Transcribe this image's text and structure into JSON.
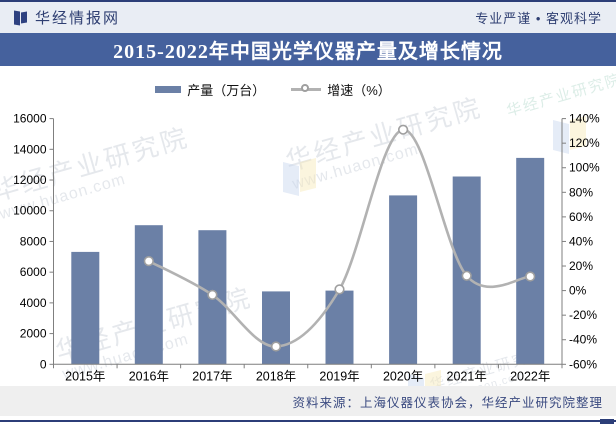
{
  "header": {
    "brand": "华经情报网",
    "slogan": "专业严谨 • 客观科学"
  },
  "title": "2015-2022年中国光学仪器产量及增长情况",
  "legend": [
    {
      "label": "产量（万台）",
      "type": "bar",
      "color": "#6b80a6"
    },
    {
      "label": "增速（%）",
      "type": "line",
      "color": "#b2b2b2"
    }
  ],
  "chart_data": {
    "type": "bar",
    "categories": [
      "2015年",
      "2016年",
      "2017年",
      "2018年",
      "2019年",
      "2020年",
      "2021年",
      "2022年"
    ],
    "series": [
      {
        "name": "产量（万台）",
        "type": "bar",
        "axis": "left",
        "color": "#6b80a6",
        "values": [
          7320,
          9060,
          8730,
          4750,
          4800,
          11000,
          12230,
          13440
        ]
      },
      {
        "name": "增速（%）",
        "type": "line",
        "axis": "right",
        "color": "#b2b2b2",
        "marker_fill": "#ffffff",
        "marker_ring": "#9f9f9f",
        "values": [
          null,
          24,
          -3.5,
          -45.5,
          1,
          131,
          12,
          11.5
        ]
      }
    ],
    "left_axis": {
      "min": 0,
      "max": 16000,
      "step": 2000,
      "suffix": ""
    },
    "right_axis": {
      "min": -60,
      "max": 140,
      "step": 20,
      "suffix": "%"
    },
    "grid": false,
    "legend_position": "top",
    "title": "2015-2022年中国光学仪器产量及增长情况"
  },
  "source": "资料来源：上海仪器仪表协会，华经产业研究院整理",
  "watermark": {
    "name": "华经产业研究院",
    "site": "www.huaon.com"
  },
  "colors": {
    "banner": "#45619d",
    "navy": "#2c3e78",
    "header_bg": "#e9edf4",
    "bar": "#6b80a6",
    "line": "#b2b2b2",
    "source_bg": "#efefef",
    "source_text": "#3a4a80"
  }
}
